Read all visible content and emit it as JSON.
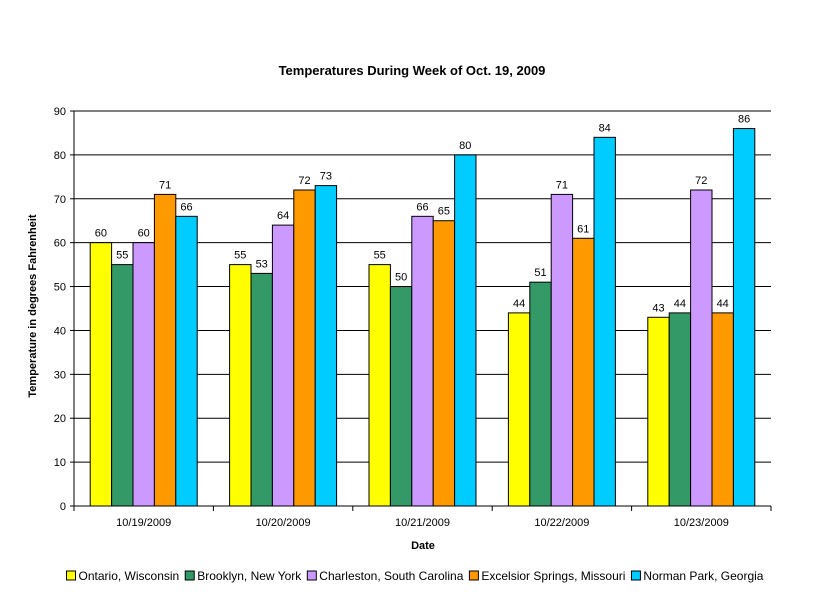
{
  "chart_data": {
    "type": "bar",
    "title": "Temperatures During Week of Oct. 19, 2009",
    "xlabel": "Date",
    "ylabel": "Temperature in degrees Fahrenheit",
    "ylim": [
      0,
      90
    ],
    "yticks": [
      0,
      10,
      20,
      30,
      40,
      50,
      60,
      70,
      80,
      90
    ],
    "grid": true,
    "legend_position": "bottom",
    "categories": [
      "10/19/2009",
      "10/20/2009",
      "10/21/2009",
      "10/22/2009",
      "10/23/2009"
    ],
    "series": [
      {
        "name": "Ontario, Wisconsin",
        "color": "#FFFF00",
        "values": [
          60,
          55,
          55,
          44,
          43
        ]
      },
      {
        "name": "Brooklyn, New York",
        "color": "#339966",
        "values": [
          55,
          53,
          50,
          51,
          44
        ]
      },
      {
        "name": "Charleston, South Carolina",
        "color": "#CC99FF",
        "values": [
          60,
          64,
          66,
          71,
          72
        ]
      },
      {
        "name": "Excelsior Springs, Missouri",
        "color": "#FF9900",
        "values": [
          71,
          72,
          65,
          61,
          44
        ]
      },
      {
        "name": "Norman Park, Georgia",
        "color": "#00CCFF",
        "values": [
          66,
          73,
          80,
          84,
          86
        ]
      }
    ]
  }
}
